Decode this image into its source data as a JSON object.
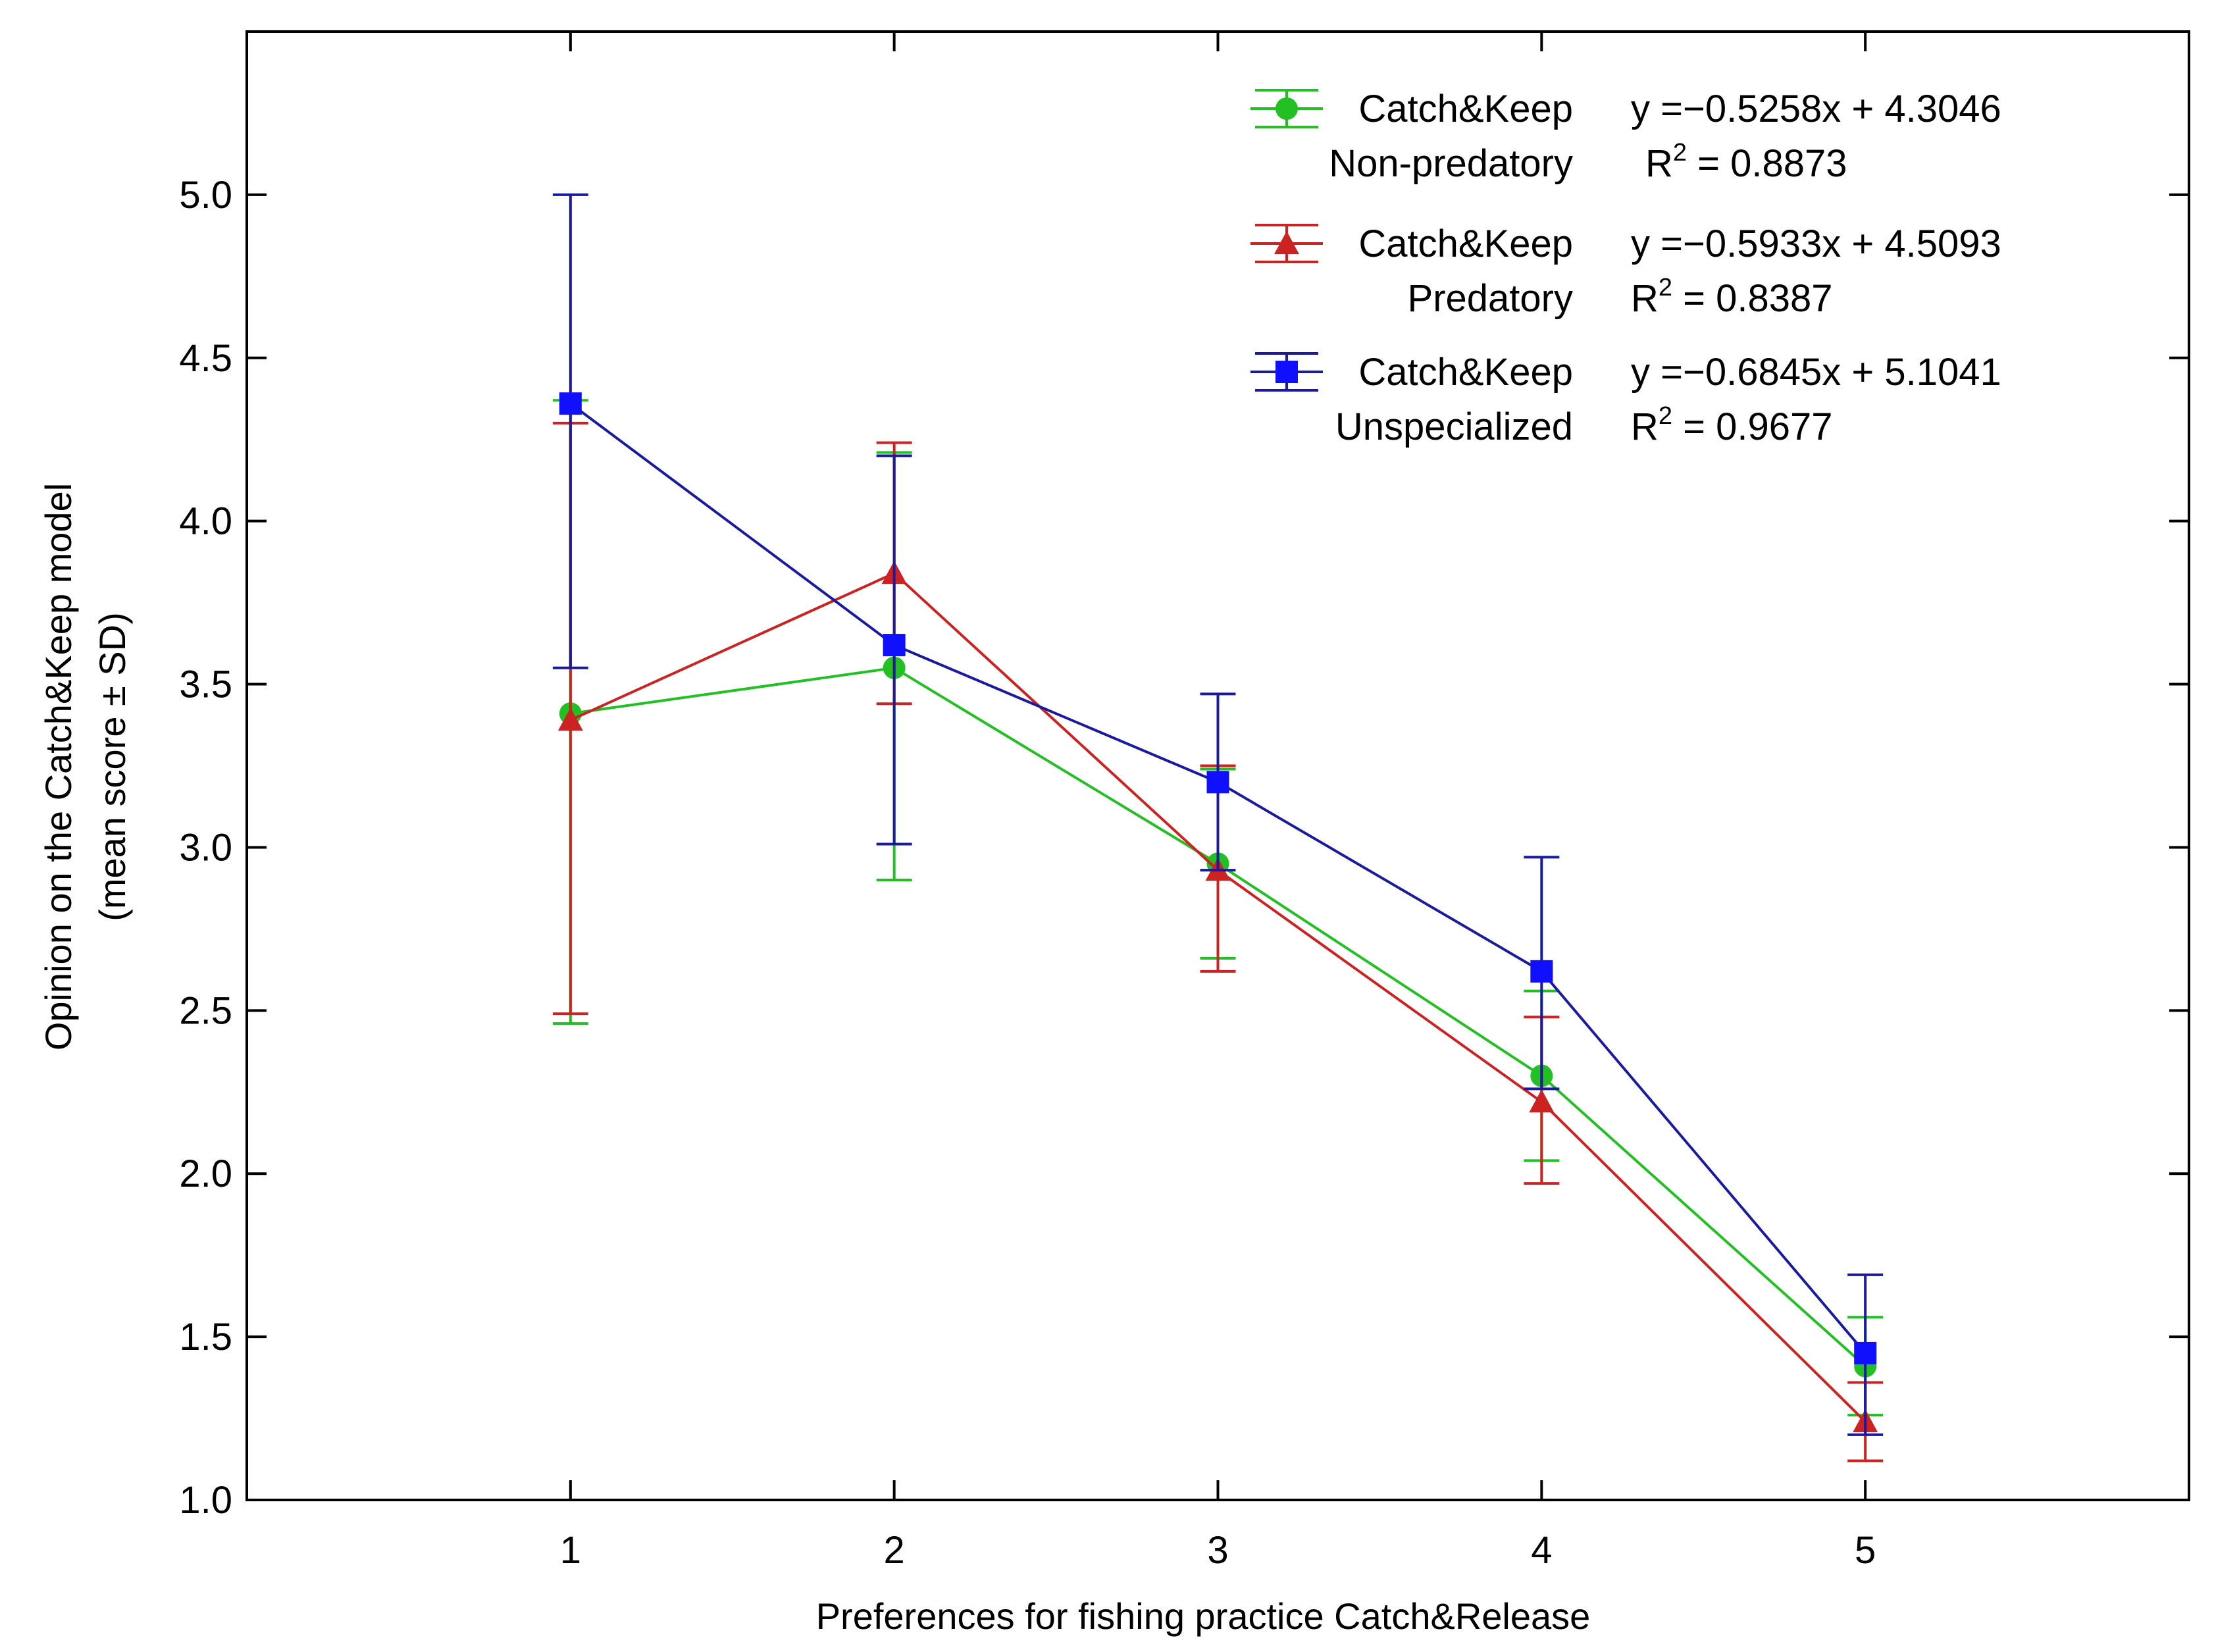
{
  "chart_data": {
    "type": "line",
    "xlabel": "Preferences for fishing practice Catch&Release",
    "ylabel_line1": "Opinion on the Catch&Keep model",
    "ylabel_line2": "(mean score ± SD)",
    "xlim": [
      0,
      6
    ],
    "ylim": [
      1.0,
      5.5
    ],
    "x_ticks": [
      1,
      2,
      3,
      4,
      5
    ],
    "x_tick_labels": [
      "1",
      "2",
      "3",
      "4",
      "5"
    ],
    "y_ticks": [
      1.0,
      1.5,
      2.0,
      2.5,
      3.0,
      3.5,
      4.0,
      4.5,
      5.0
    ],
    "y_tick_labels": [
      "1.0",
      "1.5",
      "2.0",
      "2.5",
      "3.0",
      "3.5",
      "4.0",
      "4.5",
      "5.0"
    ],
    "series": [
      {
        "id": "nonpredatory",
        "name": "Catch&Keep",
        "subname": "Non-predatory",
        "equation": "y =−0.5258x + 4.3046",
        "r2_label": "R",
        "r2_sup": "2",
        "r2_value": " = 0.8873",
        "color": "#22c022",
        "marker": "circle",
        "x": [
          1,
          2,
          3,
          4,
          5
        ],
        "mean": [
          3.41,
          3.55,
          2.95,
          2.3,
          1.41
        ],
        "err_low": [
          2.46,
          2.9,
          2.66,
          2.04,
          1.26
        ],
        "err_high": [
          4.37,
          4.21,
          3.24,
          2.56,
          1.56
        ]
      },
      {
        "id": "predatory",
        "name": "Catch&Keep",
        "subname": "Predatory",
        "equation": "y =−0.5933x + 4.5093",
        "r2_label": "R",
        "r2_sup": "2",
        "r2_value": " = 0.8387",
        "color": "#cc2222",
        "marker": "triangle",
        "x": [
          1,
          2,
          3,
          4,
          5
        ],
        "mean": [
          3.39,
          3.84,
          2.93,
          2.22,
          1.24
        ],
        "err_low": [
          2.49,
          3.44,
          2.62,
          1.97,
          1.12
        ],
        "err_high": [
          4.3,
          4.24,
          3.25,
          2.48,
          1.36
        ]
      },
      {
        "id": "unspecialized",
        "name": "Catch&Keep",
        "subname": "Unspecialized",
        "equation": "y =−0.6845x + 5.1041",
        "r2_label": "R",
        "r2_sup": "2",
        "r2_value": " = 0.9677",
        "color": "#1a1aa0",
        "marker_color": "#1010ff",
        "marker": "square",
        "x": [
          1,
          2,
          3,
          4,
          5
        ],
        "mean": [
          4.36,
          3.62,
          3.2,
          2.62,
          1.45
        ],
        "err_low": [
          3.55,
          3.01,
          2.93,
          2.26,
          1.2
        ],
        "err_high": [
          5.0,
          4.2,
          3.47,
          2.97,
          1.69
        ]
      }
    ]
  }
}
